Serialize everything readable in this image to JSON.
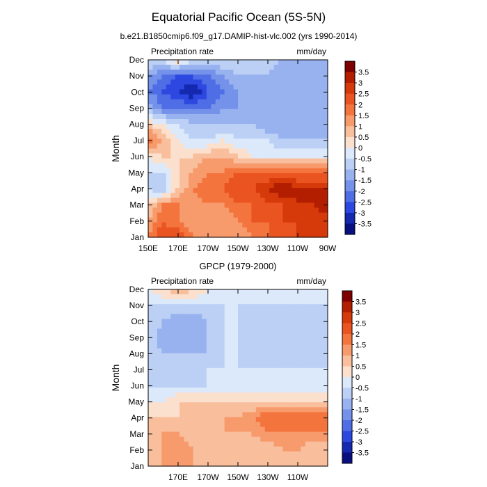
{
  "figure": {
    "title": "Equatorial Pacific Ocean (5S-5N)",
    "subtitle": "b.e21.B1850cmip6.f09_g17.DAMIP-hist-vlc.002 (yrs 1990-2014)"
  },
  "colorbar": {
    "labels": [
      "3.5",
      "3",
      "2.5",
      "2",
      "1.5",
      "1",
      "0.5",
      "0",
      "-0.5",
      "-1",
      "-1.5",
      "-2",
      "-2.5",
      "-3",
      "-3.5"
    ],
    "colors": [
      "#7f0000",
      "#b41e00",
      "#d63a0a",
      "#ea5421",
      "#f4743e",
      "#f79a6c",
      "#f9bf9c",
      "#fbe0cd",
      "#dce9fb",
      "#bcd0f5",
      "#98b2ef",
      "#7592ea",
      "#4f6ee6",
      "#2c48e0",
      "#1529b0",
      "#0a0f80"
    ]
  },
  "chart_data": [
    {
      "type": "heatmap",
      "panel_title": "",
      "left_label": "Precipitation rate",
      "right_label": "mm/day",
      "ylabel": "Month",
      "x_ticks": [
        "150E",
        "170E",
        "170W",
        "150W",
        "130W",
        "110W",
        "90W"
      ],
      "y_ticks": [
        "Jan",
        "Feb",
        "Mar",
        "Apr",
        "May",
        "Jun",
        "Jul",
        "Aug",
        "Sep",
        "Oct",
        "Nov",
        "Dec"
      ],
      "x_range": [
        "150E",
        "90W"
      ],
      "x_lon": [
        150,
        160,
        170,
        180,
        190,
        200,
        210,
        220,
        230,
        240,
        250,
        260,
        270
      ],
      "months": [
        "Jan",
        "Feb",
        "Mar",
        "Apr",
        "May",
        "Jun",
        "Jul",
        "Aug",
        "Sep",
        "Oct",
        "Nov",
        "Dec"
      ],
      "values": [
        [
          1.5,
          2.5,
          2.5,
          1.5,
          1.0,
          1.0,
          1.0,
          1.5,
          2.0,
          2.0,
          2.5,
          2.5,
          2.5
        ],
        [
          1.0,
          2.0,
          1.5,
          1.0,
          1.0,
          1.0,
          1.5,
          2.0,
          2.0,
          2.5,
          2.5,
          2.5,
          2.5
        ],
        [
          0.5,
          1.5,
          1.5,
          1.0,
          1.5,
          1.5,
          2.0,
          2.0,
          2.5,
          2.5,
          3.0,
          3.0,
          3.5
        ],
        [
          -0.5,
          -1.0,
          0.5,
          1.5,
          2.0,
          2.0,
          2.5,
          2.5,
          3.0,
          3.5,
          3.0,
          3.0,
          3.0
        ],
        [
          -0.5,
          -0.5,
          0.5,
          1.0,
          1.5,
          1.5,
          2.0,
          2.0,
          2.0,
          2.0,
          2.0,
          2.0,
          2.0
        ],
        [
          0.0,
          0.5,
          0.5,
          0.5,
          1.0,
          1.0,
          0.5,
          0.0,
          0.0,
          0.0,
          0.0,
          0.0,
          0.0
        ],
        [
          2.0,
          1.0,
          0.0,
          -0.5,
          -0.5,
          0.0,
          -0.5,
          -0.5,
          -0.5,
          -1.0,
          -1.0,
          -1.0,
          -1.0
        ],
        [
          0.5,
          0.0,
          -0.5,
          -1.0,
          -1.0,
          -1.0,
          -1.0,
          -1.0,
          -1.5,
          -1.5,
          -1.5,
          -1.5,
          -1.5
        ],
        [
          -1.0,
          -2.0,
          -2.0,
          -2.0,
          -2.0,
          -1.5,
          -1.5,
          -1.5,
          -1.5,
          -1.5,
          -1.5,
          -1.5,
          -1.5
        ],
        [
          -2.0,
          -2.5,
          -3.0,
          -3.5,
          -2.5,
          -2.0,
          -1.5,
          -1.5,
          -1.5,
          -1.5,
          -1.5,
          -1.5,
          -1.5
        ],
        [
          -1.5,
          -2.0,
          -2.5,
          -2.5,
          -2.0,
          -1.5,
          -1.0,
          -1.0,
          -1.0,
          -1.5,
          -1.5,
          -1.5,
          -1.5
        ],
        [
          -0.5,
          -0.5,
          0.5,
          -0.5,
          -0.5,
          -0.5,
          -0.5,
          -0.5,
          -0.5,
          -1.0,
          -1.0,
          -1.0,
          -1.0
        ]
      ]
    },
    {
      "type": "heatmap",
      "panel_title": "GPCP (1979-2000)",
      "left_label": "Precipitation rate",
      "right_label": "mm/day",
      "ylabel": "Month",
      "x_ticks": [
        "170E",
        "170W",
        "150W",
        "130W",
        "110W"
      ],
      "y_ticks": [
        "Jan",
        "Feb",
        "Mar",
        "Apr",
        "May",
        "Jun",
        "Jul",
        "Aug",
        "Sep",
        "Oct",
        "Nov",
        "Dec"
      ],
      "x_range": [
        "150E",
        "90W"
      ],
      "x_lon": [
        150,
        160,
        170,
        180,
        190,
        200,
        210,
        220,
        230,
        240,
        250,
        260,
        270
      ],
      "months": [
        "Jan",
        "Feb",
        "Mar",
        "Apr",
        "May",
        "Jun",
        "Jul",
        "Aug",
        "Sep",
        "Oct",
        "Nov",
        "Dec"
      ],
      "values": [
        [
          0.5,
          1.0,
          1.5,
          1.0,
          0.5,
          0.5,
          0.5,
          0.5,
          0.5,
          0.5,
          0.5,
          0.5,
          0.5
        ],
        [
          0.5,
          1.0,
          1.5,
          1.0,
          0.5,
          0.5,
          0.5,
          0.5,
          0.5,
          1.0,
          1.0,
          0.5,
          0.5
        ],
        [
          0.5,
          1.0,
          1.0,
          0.5,
          0.5,
          1.0,
          1.0,
          1.0,
          1.5,
          1.5,
          1.5,
          1.5,
          1.5
        ],
        [
          0.5,
          0.5,
          0.5,
          1.0,
          1.0,
          1.0,
          1.0,
          1.5,
          2.0,
          2.0,
          2.0,
          2.0,
          2.0
        ],
        [
          0.0,
          0.0,
          0.5,
          0.5,
          0.5,
          0.5,
          0.5,
          0.5,
          0.5,
          0.5,
          0.5,
          0.5,
          0.5
        ],
        [
          -0.5,
          -0.5,
          -0.5,
          -0.5,
          -0.5,
          -0.5,
          -0.5,
          -0.5,
          -0.5,
          -0.5,
          -0.5,
          -0.5,
          -0.5
        ],
        [
          -0.5,
          -1.0,
          -1.0,
          -1.0,
          -0.5,
          -0.5,
          -0.5,
          -0.5,
          -0.5,
          -0.5,
          -0.5,
          -0.5,
          -0.5
        ],
        [
          -0.5,
          -1.0,
          -1.0,
          -1.0,
          -1.0,
          -0.5,
          -0.5,
          -1.0,
          -1.0,
          -1.0,
          -1.0,
          -1.0,
          -1.0
        ],
        [
          -0.5,
          -1.5,
          -1.5,
          -1.5,
          -1.0,
          -0.5,
          -0.5,
          -1.0,
          -1.0,
          -1.0,
          -1.0,
          -1.0,
          -1.0
        ],
        [
          -0.5,
          -1.0,
          -1.5,
          -1.5,
          -1.0,
          -0.5,
          -0.5,
          -1.0,
          -1.0,
          -1.0,
          -1.0,
          -0.5,
          -1.0
        ],
        [
          -0.5,
          -0.5,
          -0.5,
          -0.5,
          -0.5,
          -0.5,
          -0.5,
          -0.5,
          -0.5,
          -0.5,
          -0.5,
          -0.5,
          -0.5
        ],
        [
          0.0,
          0.5,
          1.0,
          0.5,
          0.0,
          -0.5,
          -0.5,
          -0.5,
          -0.5,
          -0.5,
          -0.5,
          -0.5,
          -0.5
        ]
      ]
    }
  ]
}
